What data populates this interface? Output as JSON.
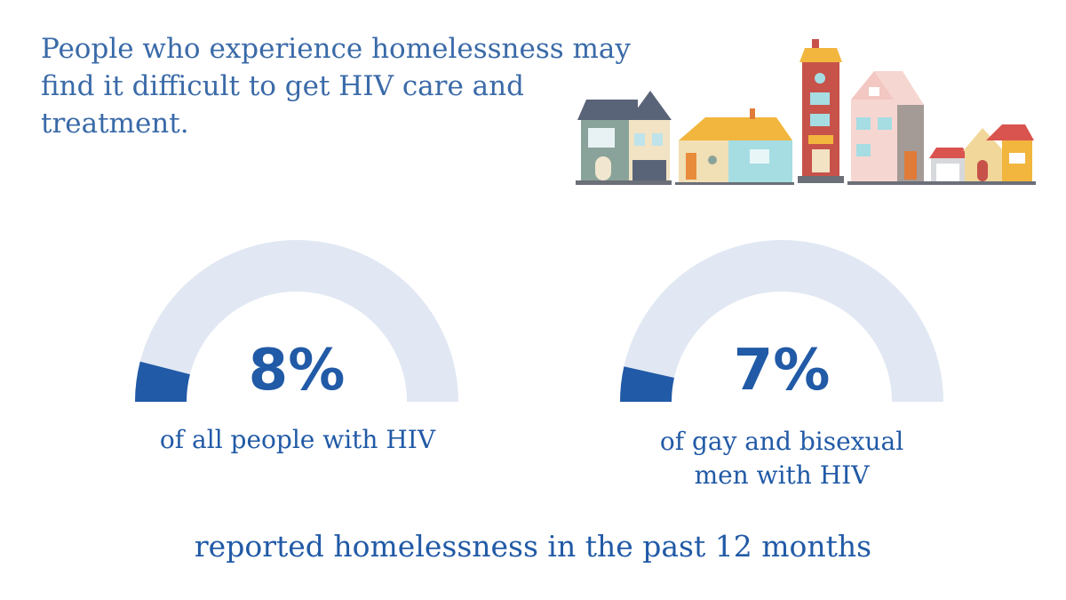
{
  "headline": "People who experience homelessness may find it difficult to get HIV care and treatment.",
  "illustration": {
    "icon": "row-of-houses-icon"
  },
  "colors": {
    "headline": "#3a6aa8",
    "accent": "#215aa6",
    "track": "#e1e8f3"
  },
  "chart_data": [
    {
      "type": "gauge",
      "value": 8,
      "max": 100,
      "value_label": "8%",
      "caption": "of all people with HIV"
    },
    {
      "type": "gauge",
      "value": 7,
      "max": 100,
      "value_label": "7%",
      "caption_lines": [
        "of gay and bisexual",
        "men with HIV"
      ]
    }
  ],
  "footer": "reported homelessness in the past 12 months"
}
